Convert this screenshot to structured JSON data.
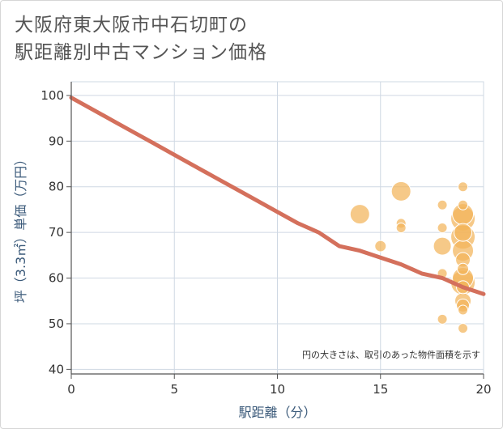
{
  "title_lines": [
    "大阪府東大阪市中石切町の",
    "駅距離別中古マンション価格"
  ],
  "chart_data": {
    "type": "scatter",
    "title": "大阪府東大阪市中石切町の駅距離別中古マンション価格",
    "xlabel": "駅距離（分）",
    "ylabel": "坪（3.3㎡）単価（万円）",
    "xlim": [
      0,
      20
    ],
    "ylim": [
      39,
      103
    ],
    "x_ticks": [
      0,
      5,
      10,
      15,
      20
    ],
    "y_ticks": [
      40,
      50,
      60,
      70,
      80,
      90,
      100
    ],
    "grid": true,
    "note": "円の大きさは、取引のあった物件面積を示す",
    "trend_line": {
      "name": "trend",
      "color": "#d4705c",
      "x": [
        0,
        1,
        2,
        3,
        4,
        5,
        6,
        7,
        8,
        9,
        10,
        11,
        12,
        13,
        14,
        15,
        16,
        17,
        18,
        19,
        20
      ],
      "y": [
        99.5,
        97,
        94.5,
        92,
        89.5,
        87,
        84.5,
        82,
        79.5,
        77,
        74.5,
        72,
        70,
        67,
        66,
        64.5,
        63,
        61,
        60,
        58,
        56.5
      ]
    },
    "points_color": "#f3b45a",
    "points": [
      {
        "x": 14,
        "y": 74,
        "size": 12
      },
      {
        "x": 15,
        "y": 67,
        "size": 7
      },
      {
        "x": 16,
        "y": 79,
        "size": 12
      },
      {
        "x": 16,
        "y": 72,
        "size": 6
      },
      {
        "x": 16,
        "y": 71,
        "size": 6
      },
      {
        "x": 18,
        "y": 76,
        "size": 6
      },
      {
        "x": 18,
        "y": 71,
        "size": 6
      },
      {
        "x": 18,
        "y": 67,
        "size": 11
      },
      {
        "x": 18,
        "y": 61,
        "size": 6
      },
      {
        "x": 18,
        "y": 51,
        "size": 6
      },
      {
        "x": 19,
        "y": 80,
        "size": 6
      },
      {
        "x": 19,
        "y": 76,
        "size": 6
      },
      {
        "x": 19,
        "y": 74,
        "size": 13
      },
      {
        "x": 19,
        "y": 73,
        "size": 15
      },
      {
        "x": 19,
        "y": 70,
        "size": 11
      },
      {
        "x": 19,
        "y": 69,
        "size": 15
      },
      {
        "x": 19,
        "y": 66,
        "size": 13
      },
      {
        "x": 19,
        "y": 64,
        "size": 9
      },
      {
        "x": 19,
        "y": 62,
        "size": 7
      },
      {
        "x": 19,
        "y": 60,
        "size": 13
      },
      {
        "x": 19,
        "y": 59,
        "size": 15
      },
      {
        "x": 19,
        "y": 58,
        "size": 8
      },
      {
        "x": 19,
        "y": 55,
        "size": 10
      },
      {
        "x": 19,
        "y": 54,
        "size": 8
      },
      {
        "x": 19,
        "y": 53,
        "size": 6
      },
      {
        "x": 19,
        "y": 49,
        "size": 6
      }
    ]
  }
}
